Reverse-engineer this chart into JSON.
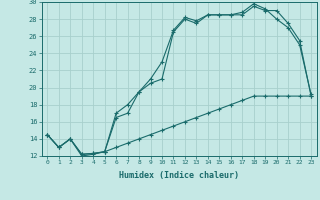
{
  "xlabel": "Humidex (Indice chaleur)",
  "bg_color": "#c5e8e5",
  "grid_color": "#a8d0cc",
  "line_color": "#1a6b6b",
  "xlim": [
    -0.5,
    23.5
  ],
  "ylim": [
    12,
    30
  ],
  "xticks": [
    0,
    1,
    2,
    3,
    4,
    5,
    6,
    7,
    8,
    9,
    10,
    11,
    12,
    13,
    14,
    15,
    16,
    17,
    18,
    19,
    20,
    21,
    22,
    23
  ],
  "yticks": [
    12,
    14,
    16,
    18,
    20,
    22,
    24,
    26,
    28,
    30
  ],
  "line1_x": [
    0,
    1,
    2,
    3,
    4,
    5,
    6,
    7,
    8,
    9,
    10,
    11,
    12,
    13,
    14,
    15,
    16,
    17,
    18,
    19,
    20,
    21,
    22,
    23
  ],
  "line1_y": [
    14.5,
    13.0,
    14.0,
    12.2,
    12.3,
    12.5,
    16.5,
    17.0,
    19.5,
    20.5,
    21.0,
    26.5,
    28.0,
    27.5,
    28.5,
    28.5,
    28.5,
    28.5,
    29.5,
    29.0,
    29.0,
    27.5,
    25.5,
    19.0
  ],
  "line2_x": [
    0,
    1,
    2,
    3,
    4,
    5,
    6,
    7,
    8,
    9,
    10,
    11,
    12,
    13,
    14,
    15,
    16,
    17,
    18,
    19,
    20,
    21,
    22,
    23
  ],
  "line2_y": [
    14.5,
    13.0,
    14.0,
    12.2,
    12.3,
    12.5,
    17.0,
    18.0,
    19.5,
    21.0,
    23.0,
    26.7,
    28.2,
    27.8,
    28.5,
    28.5,
    28.5,
    28.8,
    29.8,
    29.2,
    28.0,
    27.0,
    25.0,
    19.2
  ],
  "line3_x": [
    0,
    1,
    2,
    3,
    4,
    5,
    6,
    7,
    8,
    9,
    10,
    11,
    12,
    13,
    14,
    15,
    16,
    17,
    18,
    19,
    20,
    21,
    22,
    23
  ],
  "line3_y": [
    14.5,
    13.0,
    14.0,
    12.0,
    12.2,
    12.5,
    13.0,
    13.5,
    14.0,
    14.5,
    15.0,
    15.5,
    16.0,
    16.5,
    17.0,
    17.5,
    18.0,
    18.5,
    19.0,
    19.0,
    19.0,
    19.0,
    19.0,
    19.0
  ]
}
